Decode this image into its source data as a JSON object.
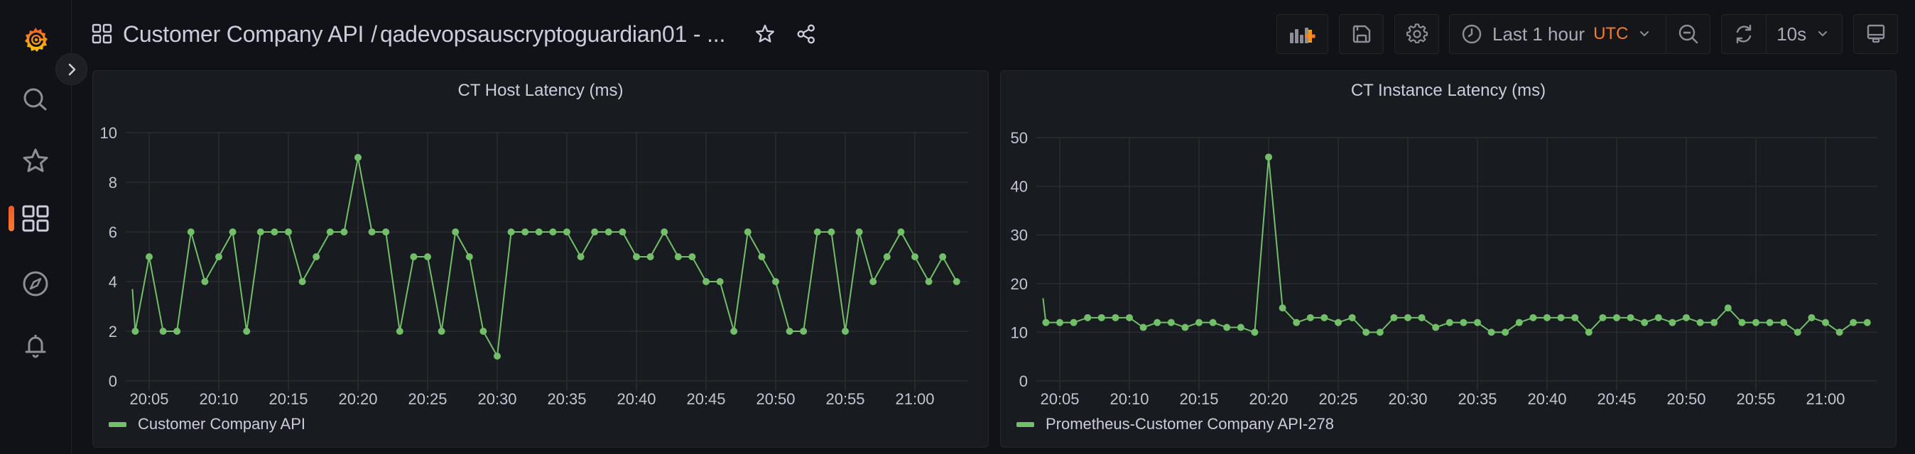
{
  "sidebar": {
    "items": [
      {
        "name": "home",
        "icon": "grafana-logo"
      },
      {
        "name": "search",
        "icon": "search-icon"
      },
      {
        "name": "starred",
        "icon": "star-icon"
      },
      {
        "name": "dashboards",
        "icon": "dashboards-icon",
        "active": true
      },
      {
        "name": "explore",
        "icon": "compass-icon"
      },
      {
        "name": "alerting",
        "icon": "bell-icon"
      }
    ],
    "expand_icon": "chevron-right-icon"
  },
  "header": {
    "folder": "Customer Company API",
    "separator": "/",
    "dashboard": "qadevopsauscryptoguardian01 - ...",
    "star_icon": "star-icon",
    "share_icon": "share-icon"
  },
  "toolbar": {
    "add_panel_icon": "add-panel-icon",
    "save_icon": "save-icon",
    "settings_icon": "gear-icon",
    "time_range": "Last 1 hour",
    "timezone": "UTC",
    "zoom_out_icon": "zoom-out-icon",
    "refresh_icon": "refresh-icon",
    "refresh_interval": "10s",
    "tv_mode_icon": "monitor-icon"
  },
  "colors": {
    "accent_orange": "#f57d2a",
    "series_green": "#73bf69",
    "panel_bg": "#181b1f",
    "page_bg": "#111217"
  },
  "panels": [
    {
      "title": "CT Host Latency (ms)",
      "legend": "Customer Company API",
      "y_ticks": [
        "0",
        "2",
        "4",
        "6",
        "8",
        "10"
      ],
      "x_ticks": [
        "20:05",
        "20:10",
        "20:15",
        "20:20",
        "20:25",
        "20:30",
        "20:35",
        "20:40",
        "20:45",
        "20:50",
        "20:55",
        "21:00"
      ]
    },
    {
      "title": "CT Instance Latency (ms)",
      "legend": "Prometheus-Customer Company API-278",
      "y_ticks": [
        "0",
        "10",
        "20",
        "30",
        "40",
        "50"
      ],
      "x_ticks": [
        "20:05",
        "20:10",
        "20:15",
        "20:20",
        "20:25",
        "20:30",
        "20:35",
        "20:40",
        "20:45",
        "20:50",
        "20:55",
        "21:00"
      ]
    }
  ],
  "chart_data": [
    {
      "type": "line",
      "title": "CT Host Latency (ms)",
      "xlabel": "",
      "ylabel": "",
      "ylim": [
        0,
        10
      ],
      "grid": true,
      "legend_position": "bottom",
      "x": [
        "20:04",
        "20:05",
        "20:06",
        "20:07",
        "20:08",
        "20:09",
        "20:10",
        "20:11",
        "20:12",
        "20:13",
        "20:14",
        "20:15",
        "20:16",
        "20:17",
        "20:18",
        "20:19",
        "20:20",
        "20:21",
        "20:22",
        "20:23",
        "20:24",
        "20:25",
        "20:26",
        "20:27",
        "20:28",
        "20:29",
        "20:30",
        "20:31",
        "20:32",
        "20:33",
        "20:34",
        "20:35",
        "20:36",
        "20:37",
        "20:38",
        "20:39",
        "20:40",
        "20:41",
        "20:42",
        "20:43",
        "20:44",
        "20:45",
        "20:46",
        "20:47",
        "20:48",
        "20:49",
        "20:50",
        "20:51",
        "20:52",
        "20:53",
        "20:54",
        "20:55",
        "20:56",
        "20:57",
        "20:58",
        "20:59",
        "21:00",
        "21:01",
        "21:02",
        "21:03"
      ],
      "series": [
        {
          "name": "Customer Company API",
          "color": "#73bf69",
          "values": [
            2,
            5,
            2,
            2,
            6,
            4,
            5,
            6,
            2,
            6,
            6,
            6,
            4,
            5,
            6,
            6,
            9,
            6,
            6,
            2,
            5,
            5,
            2,
            6,
            5,
            2,
            1,
            6,
            6,
            6,
            6,
            6,
            5,
            6,
            6,
            6,
            5,
            5,
            6,
            5,
            5,
            4,
            4,
            2,
            6,
            5,
            4,
            2,
            2,
            6,
            6,
            2,
            6,
            4,
            5,
            6,
            5,
            4,
            5,
            4
          ]
        }
      ],
      "lead_in_value": 3.7
    },
    {
      "type": "line",
      "title": "CT Instance Latency (ms)",
      "xlabel": "",
      "ylabel": "",
      "ylim": [
        0,
        50
      ],
      "grid": true,
      "legend_position": "bottom",
      "x": [
        "20:04",
        "20:05",
        "20:06",
        "20:07",
        "20:08",
        "20:09",
        "20:10",
        "20:11",
        "20:12",
        "20:13",
        "20:14",
        "20:15",
        "20:16",
        "20:17",
        "20:18",
        "20:19",
        "20:20",
        "20:21",
        "20:22",
        "20:23",
        "20:24",
        "20:25",
        "20:26",
        "20:27",
        "20:28",
        "20:29",
        "20:30",
        "20:31",
        "20:32",
        "20:33",
        "20:34",
        "20:35",
        "20:36",
        "20:37",
        "20:38",
        "20:39",
        "20:40",
        "20:41",
        "20:42",
        "20:43",
        "20:44",
        "20:45",
        "20:46",
        "20:47",
        "20:48",
        "20:49",
        "20:50",
        "20:51",
        "20:52",
        "20:53",
        "20:54",
        "20:55",
        "20:56",
        "20:57",
        "20:58",
        "20:59",
        "21:00",
        "21:01",
        "21:02",
        "21:03"
      ],
      "series": [
        {
          "name": "Prometheus-Customer Company API-278",
          "color": "#73bf69",
          "values": [
            12,
            12,
            12,
            13,
            13,
            13,
            13,
            11,
            12,
            12,
            11,
            12,
            12,
            11,
            11,
            10,
            46,
            15,
            12,
            13,
            13,
            12,
            13,
            10,
            10,
            13,
            13,
            13,
            11,
            12,
            12,
            12,
            10,
            10,
            12,
            13,
            13,
            13,
            13,
            10,
            13,
            13,
            13,
            12,
            13,
            12,
            13,
            12,
            12,
            15,
            12,
            12,
            12,
            12,
            10,
            13,
            12,
            10,
            12,
            12
          ]
        }
      ],
      "lead_in_value": 17
    }
  ]
}
